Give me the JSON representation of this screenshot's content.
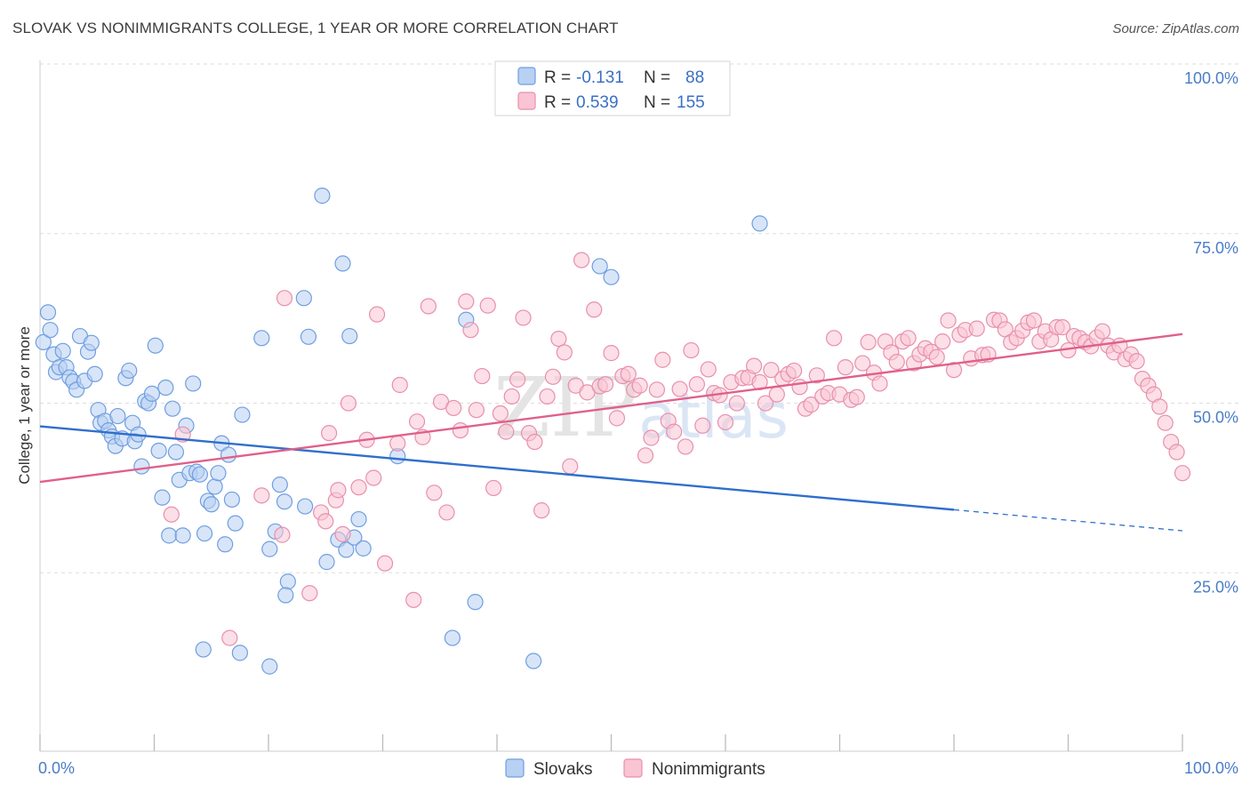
{
  "title": "SLOVAK VS NONIMMIGRANTS COLLEGE, 1 YEAR OR MORE CORRELATION CHART",
  "source": "Source: ZipAtlas.com",
  "watermark": {
    "zip": "ZIP",
    "atlas": "atlas"
  },
  "legend": {
    "r_label": "R =",
    "n_label": "N =",
    "rows": [
      {
        "name": "Slovaks",
        "r": "-0.131",
        "n": "88",
        "fill": "#b8d0f2",
        "stroke": "#6f9fe0"
      },
      {
        "name": "Nonimmigrants",
        "r": "0.539",
        "n": "155",
        "fill": "#f9c4d4",
        "stroke": "#e88fae"
      }
    ]
  },
  "chart_data": {
    "type": "scatter",
    "xlabel": "",
    "ylabel": "College, 1 year or more",
    "xlim": [
      0,
      100
    ],
    "ylim": [
      0,
      100
    ],
    "x_tick_labels": [
      {
        "value": 0,
        "label": "0.0%"
      },
      {
        "value": 100,
        "label": "100.0%"
      }
    ],
    "y_tick_labels": [
      {
        "value": 25,
        "label": "25.0%"
      },
      {
        "value": 50,
        "label": "50.0%"
      },
      {
        "value": 75,
        "label": "75.0%"
      },
      {
        "value": 100,
        "label": "100.0%"
      }
    ],
    "grid": "horizontal dashed",
    "legend_position": "top-center",
    "series": [
      {
        "name": "Slovaks",
        "color": "#6f9fe0",
        "fill": "#b8d0f2",
        "line_color": "#2f6fcc",
        "trend": {
          "x0": 0,
          "y0": 47.9,
          "x1": 80,
          "y1": 35.6,
          "dash_to_x": 100,
          "dash_to_y": 32.5
        },
        "points": [
          [
            0.3,
            60.3
          ],
          [
            0.7,
            64.7
          ],
          [
            0.9,
            62.1
          ],
          [
            1.2,
            58.5
          ],
          [
            1.4,
            55.9
          ],
          [
            1.7,
            56.6
          ],
          [
            2.0,
            59.0
          ],
          [
            2.3,
            56.6
          ],
          [
            2.6,
            55.1
          ],
          [
            2.9,
            54.5
          ],
          [
            3.2,
            53.3
          ],
          [
            3.5,
            61.2
          ],
          [
            3.9,
            54.6
          ],
          [
            4.2,
            58.9
          ],
          [
            4.5,
            60.2
          ],
          [
            4.8,
            55.6
          ],
          [
            5.1,
            50.3
          ],
          [
            5.3,
            48.4
          ],
          [
            5.7,
            48.7
          ],
          [
            6.0,
            47.3
          ],
          [
            6.3,
            46.4
          ],
          [
            6.6,
            45.0
          ],
          [
            6.8,
            49.4
          ],
          [
            7.2,
            46.1
          ],
          [
            7.5,
            55.0
          ],
          [
            7.8,
            56.1
          ],
          [
            8.1,
            48.4
          ],
          [
            8.3,
            45.7
          ],
          [
            8.6,
            46.7
          ],
          [
            8.9,
            42.0
          ],
          [
            9.2,
            51.6
          ],
          [
            9.5,
            51.3
          ],
          [
            9.8,
            52.7
          ],
          [
            10.1,
            59.8
          ],
          [
            10.4,
            44.3
          ],
          [
            10.7,
            37.4
          ],
          [
            11.0,
            53.6
          ],
          [
            11.3,
            31.8
          ],
          [
            11.6,
            50.5
          ],
          [
            11.9,
            44.1
          ],
          [
            12.2,
            40.0
          ],
          [
            12.5,
            31.8
          ],
          [
            12.8,
            48.0
          ],
          [
            13.1,
            41.0
          ],
          [
            13.4,
            54.2
          ],
          [
            13.7,
            41.2
          ],
          [
            14.0,
            40.8
          ],
          [
            14.4,
            32.1
          ],
          [
            14.7,
            36.9
          ],
          [
            15.0,
            36.4
          ],
          [
            15.3,
            39.0
          ],
          [
            15.6,
            41.0
          ],
          [
            15.9,
            45.4
          ],
          [
            16.2,
            30.5
          ],
          [
            16.5,
            43.7
          ],
          [
            16.8,
            37.1
          ],
          [
            17.1,
            33.6
          ],
          [
            17.7,
            49.6
          ],
          [
            14.3,
            15.0
          ],
          [
            17.5,
            14.5
          ],
          [
            19.4,
            60.9
          ],
          [
            20.1,
            29.8
          ],
          [
            20.6,
            32.4
          ],
          [
            21.0,
            39.3
          ],
          [
            21.4,
            36.8
          ],
          [
            21.7,
            25.0
          ],
          [
            21.5,
            23.0
          ],
          [
            23.1,
            66.8
          ],
          [
            23.5,
            61.1
          ],
          [
            23.2,
            36.1
          ],
          [
            24.7,
            81.9
          ],
          [
            25.1,
            27.9
          ],
          [
            26.1,
            31.2
          ],
          [
            26.5,
            71.9
          ],
          [
            26.8,
            29.7
          ],
          [
            27.1,
            61.2
          ],
          [
            27.5,
            31.5
          ],
          [
            27.9,
            34.2
          ],
          [
            28.3,
            29.9
          ],
          [
            20.1,
            12.5
          ],
          [
            31.3,
            43.5
          ],
          [
            36.1,
            16.7
          ],
          [
            37.3,
            63.6
          ],
          [
            38.1,
            22.0
          ],
          [
            43.2,
            13.3
          ],
          [
            49.0,
            71.5
          ],
          [
            50.0,
            69.9
          ],
          [
            63.0,
            77.8
          ]
        ]
      },
      {
        "name": "Nonimmigrants",
        "color": "#e88fae",
        "fill": "#f9c4d4",
        "line_color": "#e0608a",
        "trend": {
          "x0": 0,
          "y0": 39.7,
          "x1": 100,
          "y1": 61.5
        },
        "points": [
          [
            11.5,
            34.9
          ],
          [
            12.5,
            46.7
          ],
          [
            16.6,
            16.7
          ],
          [
            19.4,
            37.7
          ],
          [
            21.2,
            31.9
          ],
          [
            21.4,
            66.8
          ],
          [
            23.6,
            23.3
          ],
          [
            24.6,
            35.2
          ],
          [
            25.0,
            33.9
          ],
          [
            25.3,
            46.9
          ],
          [
            25.9,
            37.0
          ],
          [
            26.1,
            38.5
          ],
          [
            26.5,
            32.0
          ],
          [
            27.0,
            51.3
          ],
          [
            27.9,
            38.9
          ],
          [
            28.6,
            45.9
          ],
          [
            29.2,
            40.3
          ],
          [
            29.5,
            64.4
          ],
          [
            30.2,
            27.7
          ],
          [
            31.3,
            45.4
          ],
          [
            31.5,
            54.0
          ],
          [
            32.7,
            22.3
          ],
          [
            33.0,
            48.6
          ],
          [
            33.5,
            46.3
          ],
          [
            34.0,
            65.6
          ],
          [
            34.5,
            38.1
          ],
          [
            35.1,
            51.5
          ],
          [
            35.6,
            35.2
          ],
          [
            36.2,
            50.6
          ],
          [
            36.8,
            47.3
          ],
          [
            37.3,
            66.3
          ],
          [
            37.7,
            62.1
          ],
          [
            38.2,
            50.3
          ],
          [
            38.7,
            55.3
          ],
          [
            39.2,
            65.7
          ],
          [
            39.7,
            38.8
          ],
          [
            40.3,
            49.8
          ],
          [
            40.8,
            47.1
          ],
          [
            41.3,
            52.3
          ],
          [
            41.8,
            54.8
          ],
          [
            42.3,
            63.9
          ],
          [
            42.8,
            46.9
          ],
          [
            43.3,
            45.6
          ],
          [
            43.9,
            35.5
          ],
          [
            44.4,
            52.3
          ],
          [
            44.9,
            55.2
          ],
          [
            45.4,
            60.8
          ],
          [
            45.9,
            58.8
          ],
          [
            46.4,
            42.0
          ],
          [
            46.9,
            53.9
          ],
          [
            47.4,
            72.4
          ],
          [
            47.9,
            52.9
          ],
          [
            48.5,
            65.1
          ],
          [
            49.0,
            53.8
          ],
          [
            49.5,
            54.1
          ],
          [
            50.0,
            58.7
          ],
          [
            50.5,
            49.1
          ],
          [
            51.0,
            55.3
          ],
          [
            51.5,
            55.6
          ],
          [
            52.0,
            53.3
          ],
          [
            52.5,
            53.9
          ],
          [
            53.0,
            43.6
          ],
          [
            53.5,
            46.2
          ],
          [
            54.0,
            53.3
          ],
          [
            54.5,
            57.7
          ],
          [
            55.0,
            48.7
          ],
          [
            55.5,
            47.1
          ],
          [
            56.0,
            53.4
          ],
          [
            56.5,
            44.9
          ],
          [
            57.0,
            59.1
          ],
          [
            57.5,
            54.1
          ],
          [
            58.0,
            48.0
          ],
          [
            58.5,
            56.3
          ],
          [
            59.0,
            52.8
          ],
          [
            59.5,
            52.5
          ],
          [
            60.0,
            48.5
          ],
          [
            60.5,
            54.4
          ],
          [
            61.0,
            51.3
          ],
          [
            61.5,
            55.0
          ],
          [
            62.0,
            55.1
          ],
          [
            62.5,
            56.8
          ],
          [
            63.0,
            54.4
          ],
          [
            63.5,
            51.3
          ],
          [
            64.0,
            56.2
          ],
          [
            64.5,
            52.6
          ],
          [
            65.0,
            54.9
          ],
          [
            65.5,
            55.6
          ],
          [
            66.0,
            56.1
          ],
          [
            66.5,
            53.7
          ],
          [
            67.0,
            50.5
          ],
          [
            67.5,
            51.1
          ],
          [
            68.0,
            55.4
          ],
          [
            68.5,
            52.3
          ],
          [
            69.0,
            52.8
          ],
          [
            69.5,
            60.9
          ],
          [
            70.0,
            52.6
          ],
          [
            70.5,
            56.6
          ],
          [
            71.0,
            51.8
          ],
          [
            71.5,
            52.2
          ],
          [
            72.0,
            57.2
          ],
          [
            72.5,
            60.3
          ],
          [
            73.0,
            55.8
          ],
          [
            73.5,
            54.2
          ],
          [
            74.0,
            60.4
          ],
          [
            74.5,
            58.8
          ],
          [
            75.0,
            57.4
          ],
          [
            75.5,
            60.4
          ],
          [
            76.0,
            60.9
          ],
          [
            76.5,
            57.2
          ],
          [
            77.0,
            58.5
          ],
          [
            77.5,
            59.4
          ],
          [
            78.0,
            58.9
          ],
          [
            78.5,
            58.1
          ],
          [
            79.0,
            60.4
          ],
          [
            79.5,
            63.5
          ],
          [
            80.0,
            56.2
          ],
          [
            80.5,
            61.4
          ],
          [
            81.0,
            62.1
          ],
          [
            81.5,
            57.9
          ],
          [
            82.0,
            62.3
          ],
          [
            82.5,
            58.4
          ],
          [
            83.0,
            58.5
          ],
          [
            83.5,
            63.6
          ],
          [
            84.0,
            63.5
          ],
          [
            84.5,
            62.2
          ],
          [
            85.0,
            60.3
          ],
          [
            85.5,
            60.9
          ],
          [
            86.0,
            62.0
          ],
          [
            86.5,
            63.2
          ],
          [
            87.0,
            63.5
          ],
          [
            87.5,
            60.4
          ],
          [
            88.0,
            61.9
          ],
          [
            88.5,
            60.7
          ],
          [
            89.0,
            62.5
          ],
          [
            89.5,
            62.5
          ],
          [
            90.0,
            59.1
          ],
          [
            90.5,
            61.2
          ],
          [
            91.0,
            60.9
          ],
          [
            91.5,
            60.3
          ],
          [
            92.0,
            59.7
          ],
          [
            92.5,
            61.0
          ],
          [
            93.0,
            61.9
          ],
          [
            93.5,
            59.8
          ],
          [
            94.0,
            58.8
          ],
          [
            94.5,
            59.8
          ],
          [
            95.0,
            57.8
          ],
          [
            95.5,
            58.5
          ],
          [
            96.0,
            57.5
          ],
          [
            96.5,
            54.9
          ],
          [
            97.0,
            53.9
          ],
          [
            97.5,
            52.6
          ],
          [
            98.0,
            50.8
          ],
          [
            98.5,
            48.4
          ],
          [
            99.0,
            45.6
          ],
          [
            99.5,
            44.1
          ],
          [
            100.0,
            41.0
          ]
        ]
      }
    ]
  }
}
